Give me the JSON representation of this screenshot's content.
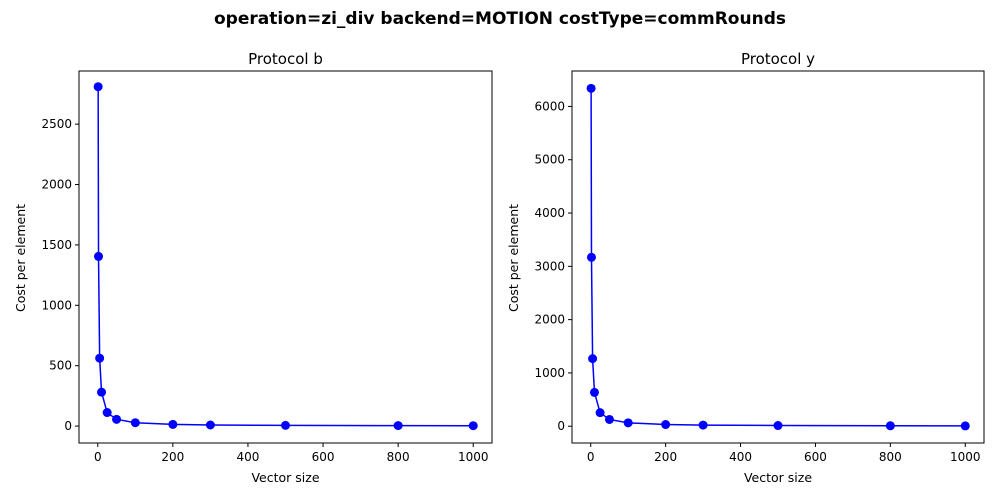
{
  "figure": {
    "title": "operation=zi_div backend=MOTION costType=commRounds"
  },
  "chart_data": [
    {
      "type": "line",
      "title": "Protocol b",
      "xlabel": "Vector size",
      "ylabel": "Cost per element",
      "xlim": [
        -50,
        1050
      ],
      "ylim": [
        -140,
        2940
      ],
      "xticks": [
        0,
        200,
        400,
        600,
        800,
        1000
      ],
      "yticks": [
        0,
        500,
        1000,
        1500,
        2000,
        2500
      ],
      "grid": false,
      "color": "#0000ff",
      "marker": "circle",
      "x": [
        1,
        2,
        5,
        10,
        25,
        50,
        100,
        200,
        300,
        500,
        800,
        1000
      ],
      "y": [
        2810,
        1405,
        562,
        281,
        112,
        56,
        28,
        14,
        9,
        6,
        4,
        3
      ]
    },
    {
      "type": "line",
      "title": "Protocol y",
      "xlabel": "Vector size",
      "ylabel": "Cost per element",
      "xlim": [
        -50,
        1050
      ],
      "ylim": [
        -315,
        6665
      ],
      "xticks": [
        0,
        200,
        400,
        600,
        800,
        1000
      ],
      "yticks": [
        0,
        1000,
        2000,
        3000,
        4000,
        5000,
        6000
      ],
      "grid": false,
      "color": "#0000ff",
      "marker": "circle",
      "x": [
        1,
        2,
        5,
        10,
        25,
        50,
        100,
        200,
        300,
        500,
        800,
        1000
      ],
      "y": [
        6340,
        3170,
        1268,
        634,
        254,
        127,
        63,
        32,
        21,
        13,
        8,
        6
      ]
    }
  ]
}
